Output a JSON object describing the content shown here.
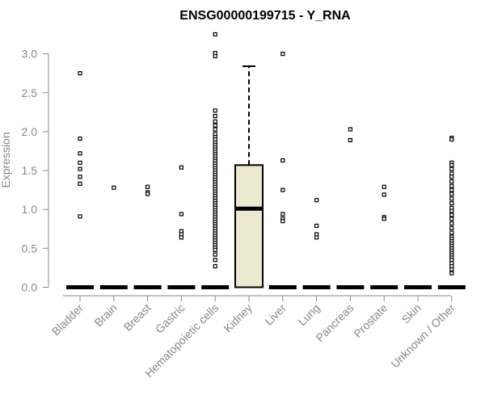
{
  "chart_data": {
    "type": "box",
    "title": "ENSG00000199715 - Y_RNA",
    "ylabel": "Expression",
    "xlabel": "",
    "ylim": [
      0,
      3.3
    ],
    "yticks": [
      "0.0",
      "0.5",
      "1.0",
      "1.5",
      "2.0",
      "2.5",
      "3.0"
    ],
    "box_fill": "#ede8d0",
    "categories": [
      "Bladder",
      "Brain",
      "Breast",
      "Gastric",
      "Hematopoietic cells",
      "Kidney",
      "Liver",
      "Lung",
      "Pancreas",
      "Prostate",
      "Skin",
      "Unknown / Other"
    ],
    "groups": [
      {
        "category": "Bladder",
        "median": 0,
        "q1": 0,
        "q3": 0,
        "whisker_low": 0,
        "whisker_high": 0,
        "outliers": [
          2.75,
          1.91,
          1.72,
          1.6,
          1.52,
          1.42,
          1.33,
          0.91
        ]
      },
      {
        "category": "Brain",
        "median": 0,
        "q1": 0,
        "q3": 0,
        "whisker_low": 0,
        "whisker_high": 0,
        "outliers": [
          1.28
        ]
      },
      {
        "category": "Breast",
        "median": 0,
        "q1": 0,
        "q3": 0,
        "whisker_low": 0,
        "whisker_high": 0,
        "outliers": [
          1.29,
          1.22,
          1.2
        ]
      },
      {
        "category": "Gastric",
        "median": 0,
        "q1": 0,
        "q3": 0,
        "whisker_low": 0,
        "whisker_high": 0,
        "outliers": [
          1.54,
          0.94,
          0.72,
          0.68,
          0.64
        ]
      },
      {
        "category": "Hematopoietic cells",
        "median": 0,
        "q1": 0,
        "q3": 0,
        "whisker_low": 0,
        "whisker_high": 0,
        "outliers": [
          3.25,
          3.01,
          2.97,
          2.27,
          2.2,
          2.13,
          2.08,
          2.03,
          1.97,
          1.93,
          1.9,
          1.86,
          1.83,
          1.8,
          1.77,
          1.74,
          1.71,
          1.68,
          1.65,
          1.62,
          1.59,
          1.56,
          1.53,
          1.5,
          1.47,
          1.44,
          1.41,
          1.38,
          1.35,
          1.32,
          1.29,
          1.26,
          1.23,
          1.2,
          1.17,
          1.14,
          1.11,
          1.08,
          1.05,
          1.02,
          0.99,
          0.96,
          0.93,
          0.9,
          0.87,
          0.84,
          0.81,
          0.78,
          0.75,
          0.72,
          0.69,
          0.66,
          0.63,
          0.6,
          0.57,
          0.54,
          0.51,
          0.48,
          0.42,
          0.35,
          0.27
        ]
      },
      {
        "category": "Kidney",
        "median": 1.01,
        "q1": 0,
        "q3": 1.57,
        "whisker_low": 0,
        "whisker_high": 2.84,
        "outliers": []
      },
      {
        "category": "Liver",
        "median": 0,
        "q1": 0,
        "q3": 0,
        "whisker_low": 0,
        "whisker_high": 0,
        "outliers": [
          3.0,
          1.63,
          1.25,
          0.94,
          0.88,
          0.85
        ]
      },
      {
        "category": "Lung",
        "median": 0,
        "q1": 0,
        "q3": 0,
        "whisker_low": 0,
        "whisker_high": 0,
        "outliers": [
          1.12,
          0.79,
          0.68,
          0.64
        ]
      },
      {
        "category": "Pancreas",
        "median": 0,
        "q1": 0,
        "q3": 0,
        "whisker_low": 0,
        "whisker_high": 0,
        "outliers": [
          2.03,
          1.89
        ]
      },
      {
        "category": "Prostate",
        "median": 0,
        "q1": 0,
        "q3": 0,
        "whisker_low": 0,
        "whisker_high": 0,
        "outliers": [
          1.29,
          1.19,
          0.9,
          0.88
        ]
      },
      {
        "category": "Skin",
        "median": 0,
        "q1": 0,
        "q3": 0,
        "whisker_low": 0,
        "whisker_high": 0,
        "outliers": []
      },
      {
        "category": "Unknown / Other",
        "median": 0,
        "q1": 0,
        "q3": 0,
        "whisker_low": 0,
        "whisker_high": 0,
        "outliers": [
          1.92,
          1.9,
          1.6,
          1.57,
          1.52,
          1.46,
          1.42,
          1.36,
          1.3,
          1.25,
          1.2,
          1.14,
          1.08,
          1.02,
          0.98,
          0.93,
          0.88,
          0.82,
          0.76,
          0.7,
          0.65,
          0.62,
          0.59,
          0.56,
          0.53,
          0.5,
          0.47,
          0.44,
          0.41,
          0.38,
          0.35,
          0.31,
          0.27,
          0.23,
          0.18
        ]
      }
    ]
  }
}
